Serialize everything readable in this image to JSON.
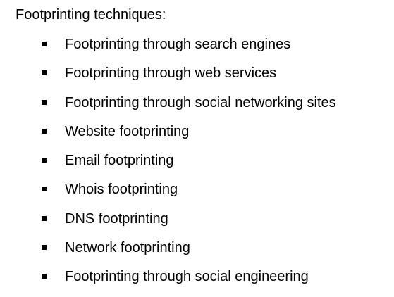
{
  "document": {
    "heading": "Footprinting techniques:",
    "items": [
      "Footprinting through search engines",
      "Footprinting through web services",
      "Footprinting through social networking sites",
      "Website footprinting",
      "Email footprinting",
      "Whois footprinting",
      "DNS footprinting",
      "Network footprinting",
      "Footprinting through social engineering"
    ]
  }
}
